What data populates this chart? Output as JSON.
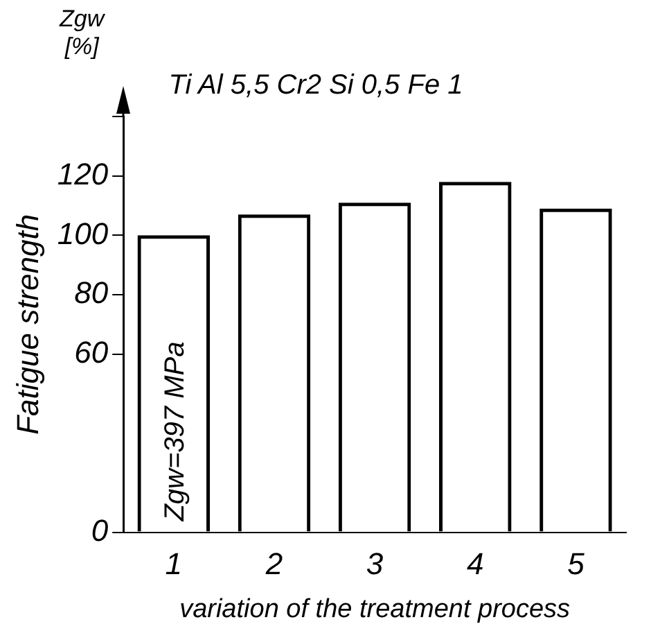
{
  "chart_data": {
    "type": "bar",
    "title": "Ti Al 5,5 Cr2 Si 0,5 Fe 1",
    "xlabel": "variation of the treatment process",
    "ylabel": "Fatigue strength",
    "annotations": [
      "Zgw [%]",
      "Zgw=397 MPa"
    ],
    "categories": [
      "1",
      "2",
      "3",
      "4",
      "5"
    ],
    "values": [
      100,
      107,
      111,
      118,
      109
    ],
    "color": "#000000",
    "ylim": [
      0,
      140
    ],
    "yticks": [
      0,
      60,
      80,
      100,
      120,
      {
        "value": 140,
        "label": null
      }
    ],
    "grid": false,
    "legend": false
  }
}
